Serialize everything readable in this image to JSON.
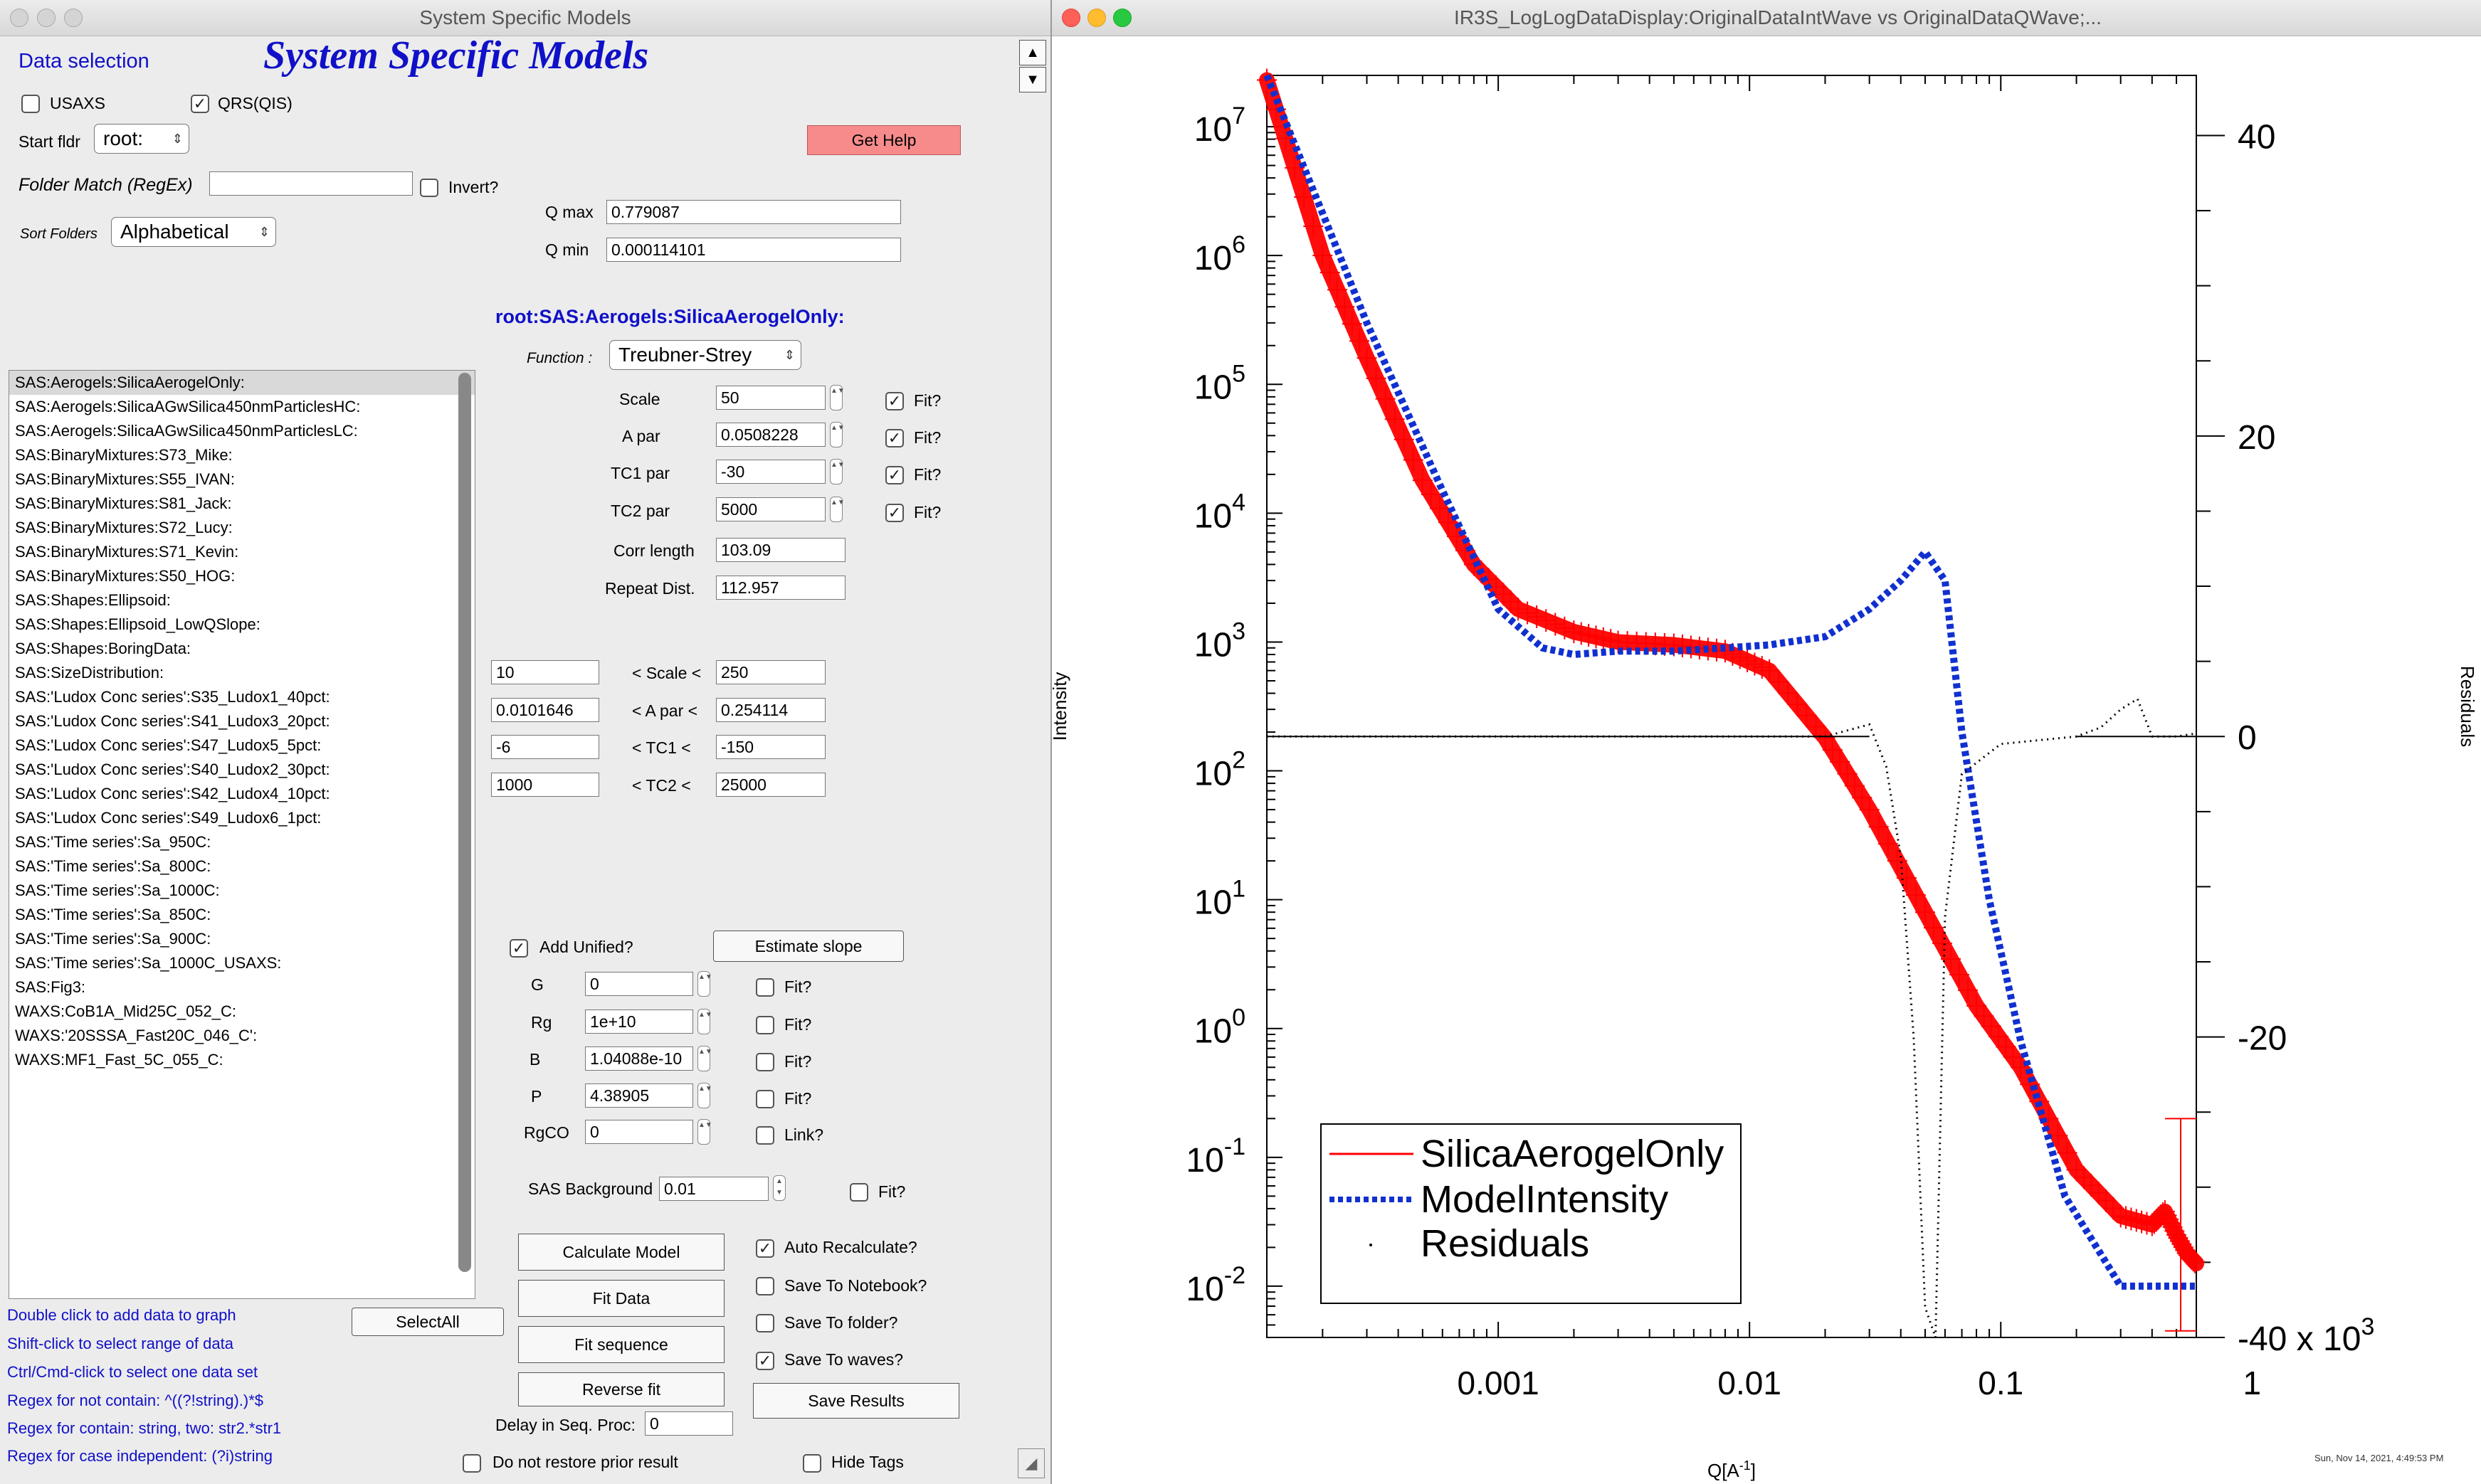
{
  "left_panel": {
    "window_title": "System Specific Models",
    "data_selection": "Data selection",
    "heading": "System Specific Models",
    "usaxs_label": "USAXS",
    "usaxs_checked": false,
    "qrs_label": "QRS(QIS)",
    "qrs_checked": true,
    "start_fldr_label": "Start fldr",
    "start_fldr_value": "root:",
    "get_help": "Get Help",
    "folder_match_label": "Folder Match (RegEx)",
    "folder_match_value": "",
    "invert_label": "Invert?",
    "sort_folders_label": "Sort Folders",
    "sort_folders_value": "Alphabetical",
    "qmax_label": "Q max",
    "qmax_value": "0.779087",
    "qmin_label": "Q min",
    "qmin_value": "0.000114101",
    "folder_path": "root:SAS:Aerogels:SilicaAerogelOnly:",
    "function_label": "Function :",
    "function_value": "Treubner-Strey",
    "params": [
      {
        "label": "Scale",
        "value": "50",
        "fit_label": "Fit?",
        "fit": true
      },
      {
        "label": "A par",
        "value": "0.0508228",
        "fit_label": "Fit?",
        "fit": true
      },
      {
        "label": "TC1 par",
        "value": "-30",
        "fit_label": "Fit?",
        "fit": true
      },
      {
        "label": "TC2 par",
        "value": "5000",
        "fit_label": "Fit?",
        "fit": true
      }
    ],
    "corr_length_label": "Corr length",
    "corr_length_value": "103.09",
    "repeat_dist_label": "Repeat Dist.",
    "repeat_dist_value": "112.957",
    "limits": [
      {
        "low": "10",
        "label": "< Scale <",
        "high": "250"
      },
      {
        "low": "0.0101646",
        "label": "< A par <",
        "high": "0.254114"
      },
      {
        "low": "-6",
        "label": "< TC1 <",
        "high": "-150"
      },
      {
        "low": "1000",
        "label": "< TC2 <",
        "high": "25000"
      }
    ],
    "data_list": [
      "SAS:Aerogels:SilicaAerogelOnly:",
      "SAS:Aerogels:SilicaAGwSilica450nmParticlesHC:",
      "SAS:Aerogels:SilicaAGwSilica450nmParticlesLC:",
      "SAS:BinaryMixtures:S73_Mike:",
      "SAS:BinaryMixtures:S55_IVAN:",
      "SAS:BinaryMixtures:S81_Jack:",
      "SAS:BinaryMixtures:S72_Lucy:",
      "SAS:BinaryMixtures:S71_Kevin:",
      "SAS:BinaryMixtures:S50_HOG:",
      "SAS:Shapes:Ellipsoid:",
      "SAS:Shapes:Ellipsoid_LowQSlope:",
      "SAS:Shapes:BoringData:",
      "SAS:SizeDistribution:",
      "SAS:'Ludox Conc series':S35_Ludox1_40pct:",
      "SAS:'Ludox Conc series':S41_Ludox3_20pct:",
      "SAS:'Ludox Conc series':S47_Ludox5_5pct:",
      "SAS:'Ludox Conc series':S40_Ludox2_30pct:",
      "SAS:'Ludox Conc series':S42_Ludox4_10pct:",
      "SAS:'Ludox Conc series':S49_Ludox6_1pct:",
      "SAS:'Time series':Sa_950C:",
      "SAS:'Time series':Sa_800C:",
      "SAS:'Time series':Sa_1000C:",
      "SAS:'Time series':Sa_850C:",
      "SAS:'Time series':Sa_900C:",
      "SAS:'Time series':Sa_1000C_USAXS:",
      "SAS:Fig3:",
      "WAXS:CoB1A_Mid25C_052_C:",
      "WAXS:'20SSSA_Fast20C_046_C':",
      "WAXS:MF1_Fast_5C_055_C:"
    ],
    "add_unified_label": "Add Unified?",
    "add_unified_checked": true,
    "estimate_slope": "Estimate slope",
    "unified": [
      {
        "label": "G",
        "value": "0",
        "check_label": "Fit?"
      },
      {
        "label": "Rg",
        "value": "1e+10",
        "check_label": "Fit?"
      },
      {
        "label": "B",
        "value": "1.04088e-10",
        "check_label": "Fit?"
      },
      {
        "label": "P",
        "value": "4.38905",
        "check_label": "Fit?"
      },
      {
        "label": "RgCO",
        "value": "0",
        "check_label": "Link?"
      }
    ],
    "sas_background_label": "SAS Background",
    "sas_background_value": "0.01",
    "sas_background_fit": "Fit?",
    "calculate_model": "Calculate Model",
    "fit_data": "Fit Data",
    "fit_sequence": "Fit sequence",
    "reverse_fit": "Reverse fit",
    "delay_label": "Delay in Seq. Proc:",
    "delay_value": "0",
    "auto_recalculate": "Auto Recalculate?",
    "save_notebook": "Save To Notebook?",
    "save_folder": "Save To folder?",
    "save_waves": "Save To waves?",
    "save_results": "Save Results",
    "select_all": "SelectAll",
    "do_not_restore": "Do not restore prior result",
    "hide_tags": "Hide Tags",
    "help_lines": [
      "Double click to add data to graph",
      "Shift-click to select range of data",
      "Ctrl/Cmd-click to select one data set",
      "Regex for not contain: ^((?!string).)*$",
      "Regex for contain:  string, two: str2.*str1",
      "Regex for case independent:  (?i)string"
    ]
  },
  "graph_window": {
    "title": "IR3S_LogLogDataDisplay:OriginalDataIntWave vs OriginalDataQWave;...",
    "timestamp": "Sun, Nov 14, 2021, 4:49:53 PM"
  },
  "chart_data": {
    "type": "line",
    "xlabel": "Q[A-1]",
    "ylabel": "Intensity",
    "y2label": "Residuals",
    "x_scale": "log",
    "y_scale": "log",
    "xlim": [
      0.00012,
      0.6
    ],
    "ylim": [
      0.004,
      25000000
    ],
    "y2lim": [
      -40000,
      44000
    ],
    "x_ticks": [
      "0.001",
      "0.01",
      "0.1",
      "1"
    ],
    "x_tick_values": [
      0.001,
      0.01,
      0.1,
      1
    ],
    "y_ticks": [
      "10-2",
      "10-1",
      "100",
      "101",
      "102",
      "103",
      "104",
      "105",
      "106",
      "107"
    ],
    "y2_ticks": [
      "40",
      "20",
      "0",
      "-20",
      "-40 x 103"
    ],
    "y2_tick_values": [
      40000,
      20000,
      0,
      -20000,
      -40000
    ],
    "legend_position": "bottom-left",
    "series": [
      {
        "name": "SilicaAerogelOnly",
        "color": "#ff0000",
        "style": "markers-with-errorbars",
        "x": [
          0.00012,
          0.0002,
          0.0003,
          0.0005,
          0.0008,
          0.0012,
          0.002,
          0.003,
          0.005,
          0.008,
          0.012,
          0.02,
          0.03,
          0.05,
          0.08,
          0.12,
          0.2,
          0.3,
          0.4,
          0.45,
          0.5,
          0.55,
          0.6
        ],
        "y": [
          23000000,
          1000000,
          160000,
          18000,
          4000,
          1800,
          1200,
          1000,
          950,
          850,
          600,
          180,
          50,
          8,
          1.5,
          0.5,
          0.08,
          0.035,
          0.03,
          0.038,
          0.025,
          0.018,
          0.015
        ]
      },
      {
        "name": "ModelIntensity",
        "color": "#1030d0",
        "style": "dotted",
        "x": [
          0.00012,
          0.0003,
          0.0006,
          0.001,
          0.0015,
          0.002,
          0.003,
          0.005,
          0.008,
          0.012,
          0.02,
          0.03,
          0.04,
          0.05,
          0.06,
          0.07,
          0.09,
          0.12,
          0.18,
          0.3,
          0.5,
          0.6
        ],
        "y": [
          25000000,
          300000,
          15000,
          1800,
          900,
          800,
          850,
          850,
          900,
          950,
          1100,
          1800,
          3000,
          5000,
          3000,
          200,
          10,
          0.8,
          0.05,
          0.01,
          0.01,
          0.01
        ]
      },
      {
        "name": "Residuals",
        "color": "#000000",
        "style": "dots",
        "axis": "right",
        "x": [
          0.00012,
          0.001,
          0.005,
          0.01,
          0.02,
          0.03,
          0.035,
          0.04,
          0.045,
          0.05,
          0.055,
          0.06,
          0.07,
          0.1,
          0.2,
          0.25,
          0.3,
          0.35,
          0.4,
          0.5,
          0.6
        ],
        "y": [
          0,
          0,
          0,
          0,
          0,
          800,
          -2000,
          -8000,
          -20000,
          -38000,
          -40000,
          -12000,
          -2500,
          -500,
          0,
          600,
          1800,
          2500,
          0,
          0,
          200
        ]
      }
    ]
  }
}
